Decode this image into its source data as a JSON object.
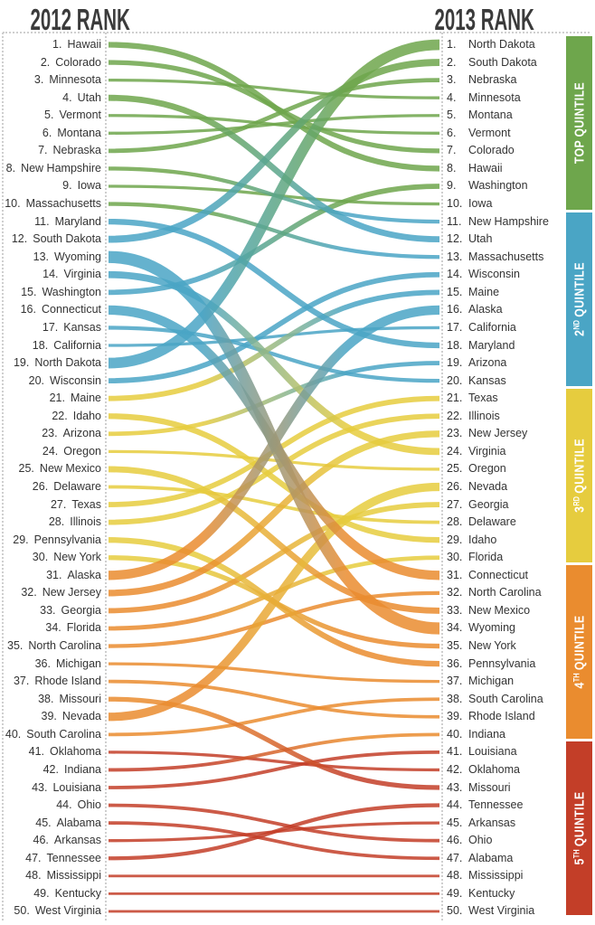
{
  "titles": {
    "left": "2012 RANK",
    "right": "2013 RANK"
  },
  "quintile_bands": [
    {
      "label": "TOP QUINTILE",
      "prefix": "TOP",
      "sup": "",
      "rest": "QUINTILE",
      "color": "#6ea64c"
    },
    {
      "label": "2ND QUINTILE",
      "prefix": "2",
      "sup": "ND",
      "rest": "QUINTILE",
      "color": "#4aa5c5"
    },
    {
      "label": "3RD QUINTILE",
      "prefix": "3",
      "sup": "RD",
      "rest": "QUINTILE",
      "color": "#e6cc3e"
    },
    {
      "label": "4TH QUINTILE",
      "prefix": "4",
      "sup": "TH",
      "rest": "QUINTILE",
      "color": "#ea8c2f"
    },
    {
      "label": "5TH QUINTILE",
      "prefix": "5",
      "sup": "TH",
      "rest": "QUINTILE",
      "color": "#c33e28"
    }
  ],
  "chart_data": {
    "type": "bump-slopegraph",
    "title_left_axis": "2012 RANK",
    "title_right_axis": "2013 RANK",
    "rank_range": [
      1,
      50
    ],
    "quintile_size": 10,
    "quintile_colors": [
      "#6ea64c",
      "#4aa5c5",
      "#e6cc3e",
      "#ea8c2f",
      "#c33e28"
    ],
    "line_color_rule": "gradient from 2012 quintile color (left) to 2013 quintile color (right); width grows with rank change",
    "states": [
      {
        "name": "Hawaii",
        "rank2012": 1,
        "rank2013": 8
      },
      {
        "name": "Colorado",
        "rank2012": 2,
        "rank2013": 7
      },
      {
        "name": "Minnesota",
        "rank2012": 3,
        "rank2013": 4
      },
      {
        "name": "Utah",
        "rank2012": 4,
        "rank2013": 12
      },
      {
        "name": "Vermont",
        "rank2012": 5,
        "rank2013": 6
      },
      {
        "name": "Montana",
        "rank2012": 6,
        "rank2013": 5
      },
      {
        "name": "Nebraska",
        "rank2012": 7,
        "rank2013": 3
      },
      {
        "name": "New Hampshire",
        "rank2012": 8,
        "rank2013": 11
      },
      {
        "name": "Iowa",
        "rank2012": 9,
        "rank2013": 10
      },
      {
        "name": "Massachusetts",
        "rank2012": 10,
        "rank2013": 13
      },
      {
        "name": "Maryland",
        "rank2012": 11,
        "rank2013": 18
      },
      {
        "name": "South Dakota",
        "rank2012": 12,
        "rank2013": 2
      },
      {
        "name": "Wyoming",
        "rank2012": 13,
        "rank2013": 34
      },
      {
        "name": "Virginia",
        "rank2012": 14,
        "rank2013": 24
      },
      {
        "name": "Washington",
        "rank2012": 15,
        "rank2013": 9
      },
      {
        "name": "Connecticut",
        "rank2012": 16,
        "rank2013": 31
      },
      {
        "name": "Kansas",
        "rank2012": 17,
        "rank2013": 20
      },
      {
        "name": "California",
        "rank2012": 18,
        "rank2013": 17
      },
      {
        "name": "North Dakota",
        "rank2012": 19,
        "rank2013": 1
      },
      {
        "name": "Wisconsin",
        "rank2012": 20,
        "rank2013": 14
      },
      {
        "name": "Maine",
        "rank2012": 21,
        "rank2013": 15
      },
      {
        "name": "Idaho",
        "rank2012": 22,
        "rank2013": 29
      },
      {
        "name": "Arizona",
        "rank2012": 23,
        "rank2013": 19
      },
      {
        "name": "Oregon",
        "rank2012": 24,
        "rank2013": 25
      },
      {
        "name": "New Mexico",
        "rank2012": 25,
        "rank2013": 33
      },
      {
        "name": "Delaware",
        "rank2012": 26,
        "rank2013": 28
      },
      {
        "name": "Texas",
        "rank2012": 27,
        "rank2013": 21
      },
      {
        "name": "Illinois",
        "rank2012": 28,
        "rank2013": 22
      },
      {
        "name": "Pennsylvania",
        "rank2012": 29,
        "rank2013": 36
      },
      {
        "name": "New York",
        "rank2012": 30,
        "rank2013": 35
      },
      {
        "name": "Alaska",
        "rank2012": 31,
        "rank2013": 16
      },
      {
        "name": "New Jersey",
        "rank2012": 32,
        "rank2013": 23
      },
      {
        "name": "Georgia",
        "rank2012": 33,
        "rank2013": 27
      },
      {
        "name": "Florida",
        "rank2012": 34,
        "rank2013": 30
      },
      {
        "name": "North Carolina",
        "rank2012": 35,
        "rank2013": 32
      },
      {
        "name": "Michigan",
        "rank2012": 36,
        "rank2013": 37
      },
      {
        "name": "Rhode Island",
        "rank2012": 37,
        "rank2013": 39
      },
      {
        "name": "Missouri",
        "rank2012": 38,
        "rank2013": 43
      },
      {
        "name": "Nevada",
        "rank2012": 39,
        "rank2013": 26
      },
      {
        "name": "South Carolina",
        "rank2012": 40,
        "rank2013": 38
      },
      {
        "name": "Oklahoma",
        "rank2012": 41,
        "rank2013": 42
      },
      {
        "name": "Indiana",
        "rank2012": 42,
        "rank2013": 40
      },
      {
        "name": "Louisiana",
        "rank2012": 43,
        "rank2013": 41
      },
      {
        "name": "Ohio",
        "rank2012": 44,
        "rank2013": 46
      },
      {
        "name": "Alabama",
        "rank2012": 45,
        "rank2013": 47
      },
      {
        "name": "Arkansas",
        "rank2012": 46,
        "rank2013": 45
      },
      {
        "name": "Tennessee",
        "rank2012": 47,
        "rank2013": 44
      },
      {
        "name": "Mississippi",
        "rank2012": 48,
        "rank2013": 48
      },
      {
        "name": "Kentucky",
        "rank2012": 49,
        "rank2013": 49
      },
      {
        "name": "West Virginia",
        "rank2012": 50,
        "rank2013": 50
      }
    ]
  },
  "layout_values": {
    "rows": 50
  }
}
